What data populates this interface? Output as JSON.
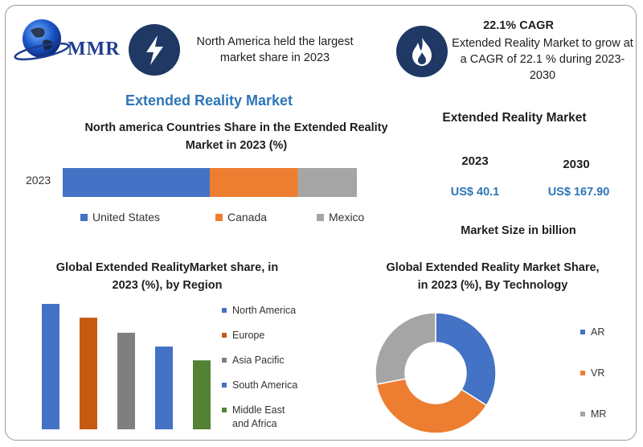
{
  "header": {
    "logo_text": "MMR",
    "highlight_left": "North America held the largest market share in 2023",
    "cagr_title": "22.1% CAGR",
    "cagr_text": "Extended Reality Market to grow at a CAGR of 22.1 % during 2023-2030"
  },
  "colors": {
    "united_states": "#4472c4",
    "canada": "#ed7d31",
    "mexico": "#a5a5a5",
    "region_na": "#4472c4",
    "region_europe": "#c55a11",
    "region_apac": "#7f7f7f",
    "region_sa": "#4472c4",
    "region_mea": "#548235",
    "icon_bg": "#1f3864"
  },
  "market": {
    "heading": "Extended Reality Market",
    "year_a": "2023",
    "year_b": "2030",
    "value_a": "US$ 40.1",
    "value_b": "US$ 167.90",
    "footer": "Market Size in billion"
  },
  "chart_data": [
    {
      "type": "bar",
      "orientation": "horizontal-stacked",
      "title": "Extended Reality Market",
      "subtitle": "North america Countries Share in the  Extended Reality Market in 2023 (%)",
      "categories": [
        "2023"
      ],
      "series": [
        {
          "name": "United States",
          "values": [
            50
          ]
        },
        {
          "name": "Canada",
          "values": [
            30
          ]
        },
        {
          "name": "Mexico",
          "values": [
            20
          ]
        }
      ],
      "legend": "bottom"
    },
    {
      "type": "bar",
      "title": "Global Extended RealityMarket share, in 2023 (%), by Region",
      "categories": [
        "North America",
        "Europe",
        "Asia Pacific",
        "South America",
        "Middle East and Africa"
      ],
      "values": [
        100,
        89,
        77,
        66,
        55
      ],
      "legend": "right"
    },
    {
      "type": "pie",
      "variant": "donut",
      "title": "Global  Extended Reality  Market Share, in 2023 (%), By Technology",
      "categories": [
        "AR",
        "VR",
        "MR"
      ],
      "values": [
        34,
        38,
        28
      ],
      "legend": "right"
    }
  ]
}
